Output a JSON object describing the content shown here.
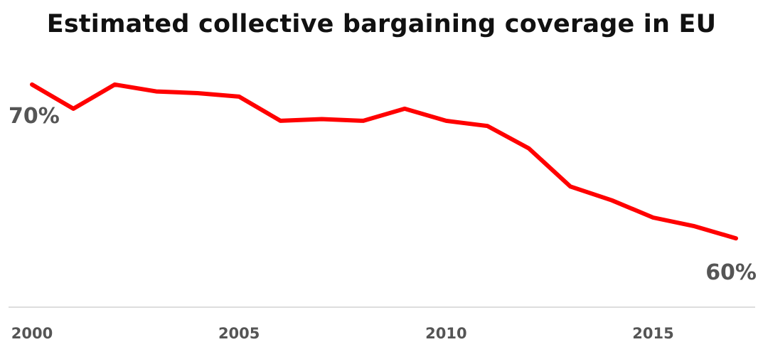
{
  "chart_data": {
    "type": "line",
    "title": "Estimated collective bargaining coverage in EU",
    "xlabel": "",
    "ylabel": "",
    "x": [
      2000,
      2001,
      2002,
      2003,
      2004,
      2005,
      2006,
      2007,
      2008,
      2009,
      2010,
      2011,
      2012,
      2013,
      2014,
      2015,
      2016,
      2017
    ],
    "series": [
      {
        "values": [
          71.3,
          69.9,
          71.3,
          70.9,
          70.8,
          70.6,
          69.2,
          69.3,
          69.2,
          69.9,
          69.2,
          68.9,
          67.6,
          65.4,
          64.6,
          63.6,
          63.1,
          62.4
        ],
        "color": "#ff0000"
      }
    ],
    "xticks": [
      "2000",
      "2005",
      "2010",
      "2015"
    ],
    "annotations": [
      {
        "x": 2000,
        "y": 71.3,
        "text": "70%"
      },
      {
        "x": 2017,
        "y": 62.4,
        "text": "60%"
      }
    ],
    "xlim": [
      2000,
      2017
    ],
    "ylim": [
      58.5,
      72.9
    ],
    "grid": false,
    "legend": "none",
    "baseline_color": "#dddddd"
  }
}
